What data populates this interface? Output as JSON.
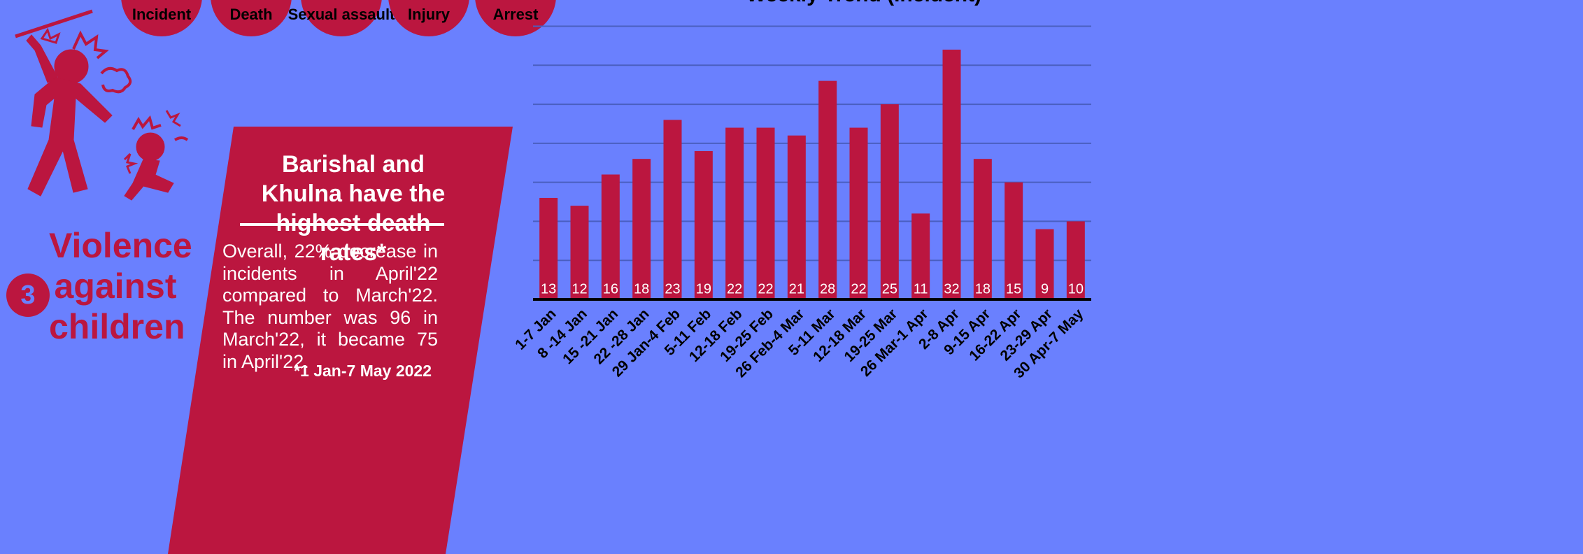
{
  "header": {
    "stats": [
      {
        "label": "Incident"
      },
      {
        "label": "Death"
      },
      {
        "label": "Sexual assault"
      },
      {
        "label": "Injury"
      },
      {
        "label": "Arrest"
      }
    ]
  },
  "section": {
    "number": "3",
    "title": "Violence against children"
  },
  "callout": {
    "heading": "Barishal and Khulna have the highest death rates*",
    "body": "Overall, 22% decrease in incidents in April'22 compared to March'22. The number was 96 in March'22, it became 75 in April'22.",
    "footnote": "*1 Jan-7 May 2022"
  },
  "chart_data": {
    "type": "bar",
    "title": "Weekly Trend (Incident)",
    "categories": [
      "1-7 Jan",
      "8 -14 Jan",
      "15 -21 Jan",
      "22 -28 Jan",
      "29 Jan-4 Feb",
      "5-11 Feb",
      "12-18 Feb",
      "19-25 Feb",
      "26 Feb-4 Mar",
      "5-11 Mar",
      "12-18 Mar",
      "19-25 Mar",
      "26 Mar-1 Apr",
      "2-8 Apr",
      "9-15 Apr",
      "16-22 Apr",
      "23-29 Apr",
      "30 Apr-7 May"
    ],
    "values": [
      13,
      12,
      16,
      18,
      23,
      19,
      22,
      22,
      21,
      28,
      22,
      25,
      11,
      32,
      18,
      15,
      9,
      10
    ],
    "color": "#bb163f",
    "ylim": [
      0,
      35
    ],
    "yticks": [
      0,
      5,
      10,
      15,
      20,
      25,
      30,
      35
    ],
    "grid": true
  }
}
